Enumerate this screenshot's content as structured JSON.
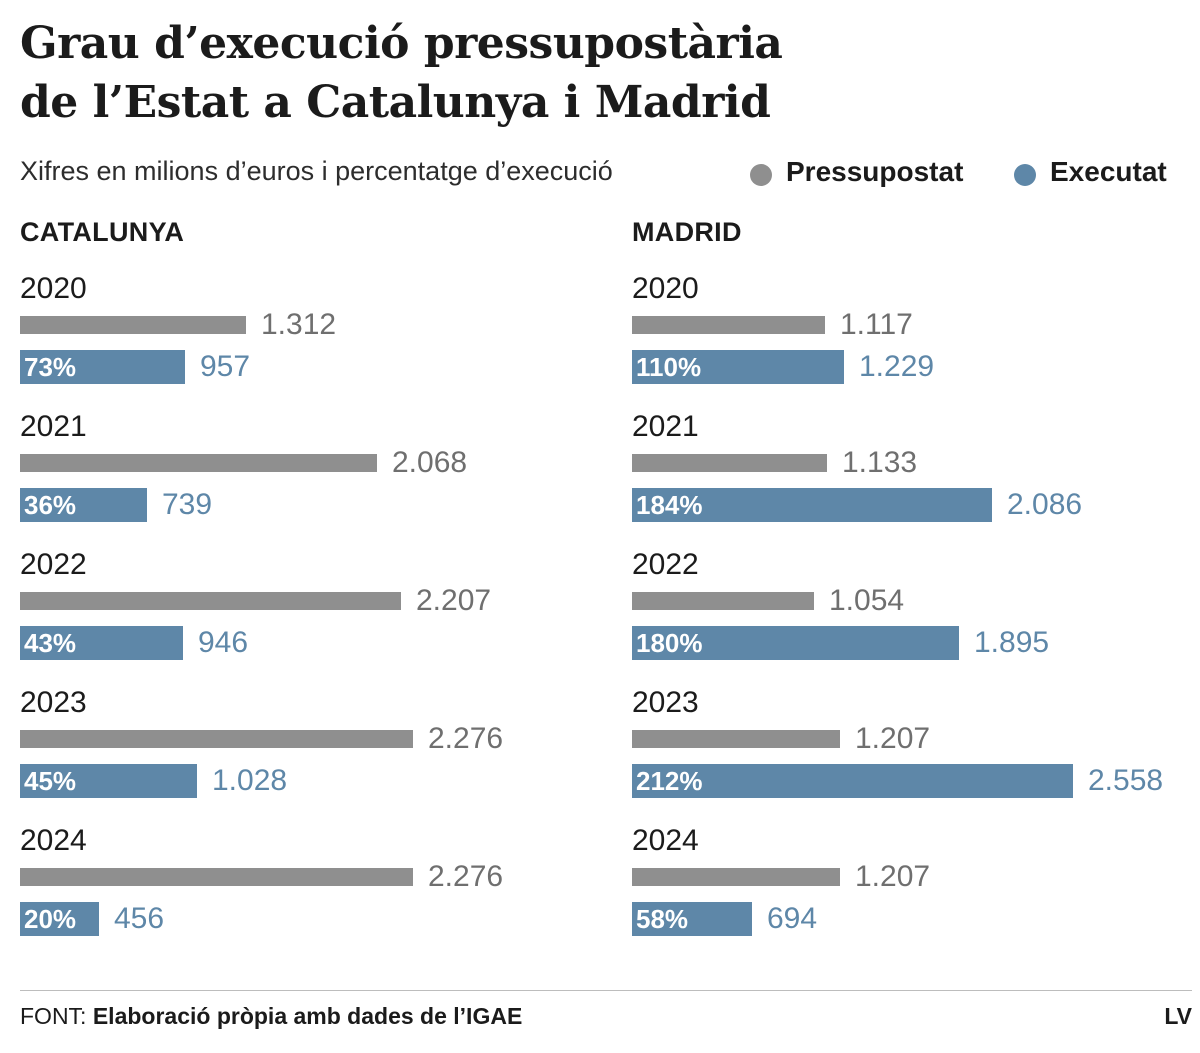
{
  "title_line1": "Grau d’execució pressupostària",
  "title_line2": "de l’Estat a Catalunya i Madrid",
  "subtitle": "Xifres en milions d’euros i percentatge d’execució",
  "legend": [
    {
      "label": "Pressupostat",
      "color": "#8f8f8f"
    },
    {
      "label": "Executat",
      "color": "#5e87a8"
    }
  ],
  "footer": {
    "prefix": "FONT:",
    "text": "Elaboració pròpia amb dades de l’IGAE"
  },
  "brand": "LV",
  "chart_data": [
    {
      "type": "bar",
      "orientation": "horizontal",
      "panel": "CATALUNYA",
      "categories": [
        "2020",
        "2021",
        "2022",
        "2023",
        "2024"
      ],
      "series": [
        {
          "name": "Pressupostat",
          "color": "#8f8f8f",
          "values": [
            1312,
            2068,
            2207,
            2276,
            2276
          ],
          "labels": [
            "1.312",
            "2.068",
            "2.207",
            "2.276",
            "2.276"
          ]
        },
        {
          "name": "Executat",
          "color": "#5e87a8",
          "values": [
            957,
            739,
            946,
            1028,
            456
          ],
          "labels": [
            "957",
            "739",
            "946",
            "1.028",
            "456"
          ],
          "percent_labels": [
            "73%",
            "36%",
            "43%",
            "45%",
            "20%"
          ]
        }
      ],
      "units": "milions d’euros"
    },
    {
      "type": "bar",
      "orientation": "horizontal",
      "panel": "MADRID",
      "categories": [
        "2020",
        "2021",
        "2022",
        "2023",
        "2024"
      ],
      "series": [
        {
          "name": "Pressupostat",
          "color": "#8f8f8f",
          "values": [
            1117,
            1133,
            1054,
            1207,
            1207
          ],
          "labels": [
            "1.117",
            "1.133",
            "1.054",
            "1.207",
            "1.207"
          ]
        },
        {
          "name": "Executat",
          "color": "#5e87a8",
          "values": [
            1229,
            2086,
            1895,
            2558,
            694
          ],
          "labels": [
            "1.229",
            "2.086",
            "1.895",
            "2.558",
            "694"
          ],
          "percent_labels": [
            "110%",
            "184%",
            "180%",
            "212%",
            "58%"
          ]
        }
      ],
      "units": "milions d’euros"
    }
  ]
}
